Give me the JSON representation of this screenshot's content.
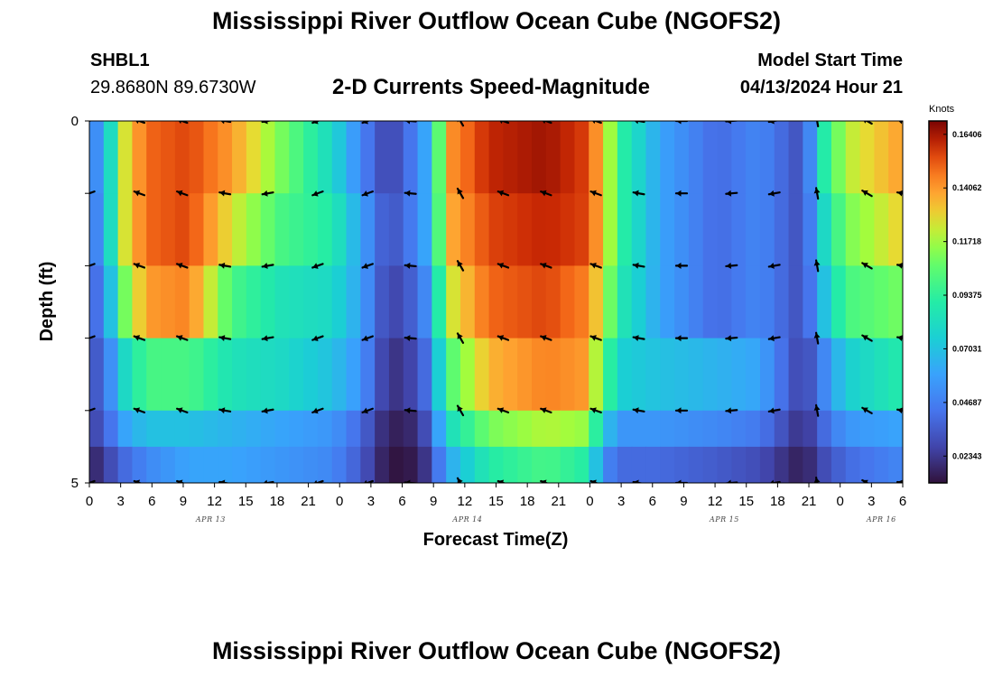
{
  "header": {
    "title": "Mississippi River Outflow Ocean Cube (NGOFS2)",
    "station_id": "SHBL1",
    "coordinates": "29.8680N  89.6730W",
    "subtitle": "2-D Currents Speed-Magnitude",
    "start_label": "Model Start Time",
    "start_value": "04/13/2024 Hour 21"
  },
  "footer": {
    "repeated_title": "Mississippi River Outflow Ocean Cube (NGOFS2)"
  },
  "chart_data": {
    "type": "heatmap",
    "title": "2-D Currents Speed-Magnitude",
    "xlabel": "Forecast Time(Z)",
    "ylabel": "Depth (ft)",
    "colorbar_label": "Knots",
    "colormap": "turbo",
    "xlim": [
      0,
      57
    ],
    "ylim": [
      0,
      5
    ],
    "y_inverted": true,
    "grid": false,
    "x_tick_labels": [
      "0",
      "3",
      "6",
      "9",
      "12",
      "15",
      "18",
      "21",
      "0",
      "3",
      "6",
      "9",
      "12",
      "15",
      "18",
      "21",
      "0",
      "3",
      "6",
      "9",
      "12",
      "15",
      "18",
      "21",
      "0",
      "3",
      "6"
    ],
    "y_tick_labels": [
      "0",
      "",
      "",
      "",
      "",
      "5"
    ],
    "date_labels": [
      {
        "label": "APR 13",
        "x": 8.5
      },
      {
        "label": "APR 14",
        "x": 26.5
      },
      {
        "label": "APR 15",
        "x": 44.5
      },
      {
        "label": "APR 16",
        "x": 55.5
      }
    ],
    "colorbar_ticks": [
      "0.02343",
      "0.04687",
      "0.07031",
      "0.09375",
      "0.11718",
      "0.14062",
      "0.16406"
    ],
    "color_range": [
      0.0117,
      0.1699
    ],
    "speed_anchors_x": [
      0,
      1,
      2.5,
      4,
      7,
      10,
      13.5,
      17,
      19,
      21,
      23,
      24,
      25,
      28,
      32,
      35,
      36,
      37.5,
      40,
      44,
      47,
      50,
      51.5,
      53,
      57
    ],
    "rows": [
      {
        "depth": 0.5,
        "speed": [
          0.045,
          0.06,
          0.125,
          0.15,
          0.155,
          0.14,
          0.11,
          0.08,
          0.05,
          0.025,
          0.05,
          0.07,
          0.14,
          0.16,
          0.165,
          0.155,
          0.13,
          0.09,
          0.06,
          0.04,
          0.05,
          0.03,
          0.09,
          0.12,
          0.14
        ]
      },
      {
        "depth": 1.5,
        "speed": [
          0.04,
          0.06,
          0.125,
          0.15,
          0.155,
          0.125,
          0.1,
          0.09,
          0.06,
          0.03,
          0.05,
          0.07,
          0.135,
          0.155,
          0.16,
          0.155,
          0.13,
          0.09,
          0.06,
          0.04,
          0.05,
          0.03,
          0.08,
          0.11,
          0.13
        ]
      },
      {
        "depth": 2.5,
        "speed": [
          0.035,
          0.05,
          0.11,
          0.14,
          0.145,
          0.1,
          0.085,
          0.08,
          0.06,
          0.025,
          0.04,
          0.06,
          0.12,
          0.15,
          0.155,
          0.145,
          0.12,
          0.085,
          0.06,
          0.04,
          0.05,
          0.03,
          0.07,
          0.1,
          0.11
        ]
      },
      {
        "depth": 3.5,
        "speed": [
          0.03,
          0.04,
          0.08,
          0.1,
          0.1,
          0.085,
          0.08,
          0.07,
          0.055,
          0.02,
          0.03,
          0.05,
          0.1,
          0.135,
          0.145,
          0.14,
          0.1,
          0.075,
          0.07,
          0.065,
          0.06,
          0.025,
          0.05,
          0.075,
          0.09
        ]
      },
      {
        "depth": 4.5,
        "speed": [
          0.025,
          0.035,
          0.06,
          0.07,
          0.07,
          0.065,
          0.06,
          0.055,
          0.04,
          0.015,
          0.02,
          0.04,
          0.08,
          0.11,
          0.12,
          0.115,
          0.07,
          0.055,
          0.055,
          0.05,
          0.045,
          0.02,
          0.04,
          0.055,
          0.06
        ]
      },
      {
        "depth": 5.0,
        "speed": [
          0.015,
          0.025,
          0.04,
          0.05,
          0.06,
          0.06,
          0.055,
          0.05,
          0.035,
          0.012,
          0.015,
          0.03,
          0.06,
          0.09,
          0.1,
          0.09,
          0.05,
          0.04,
          0.04,
          0.035,
          0.03,
          0.015,
          0.03,
          0.04,
          0.05
        ]
      }
    ],
    "vector_times": [
      0,
      3.5,
      6.5,
      9.5,
      12.5,
      16,
      19.5,
      22.5,
      26,
      29,
      32,
      35.5,
      38.5,
      41.5,
      45,
      48,
      51,
      54.5,
      57
    ],
    "vector_depths": [
      0,
      1,
      2,
      3,
      4,
      5
    ],
    "vector_directions_deg": [
      200,
      160,
      160,
      170,
      190,
      200,
      200,
      175,
      120,
      160,
      160,
      160,
      170,
      180,
      185,
      190,
      100,
      150,
      170
    ]
  }
}
